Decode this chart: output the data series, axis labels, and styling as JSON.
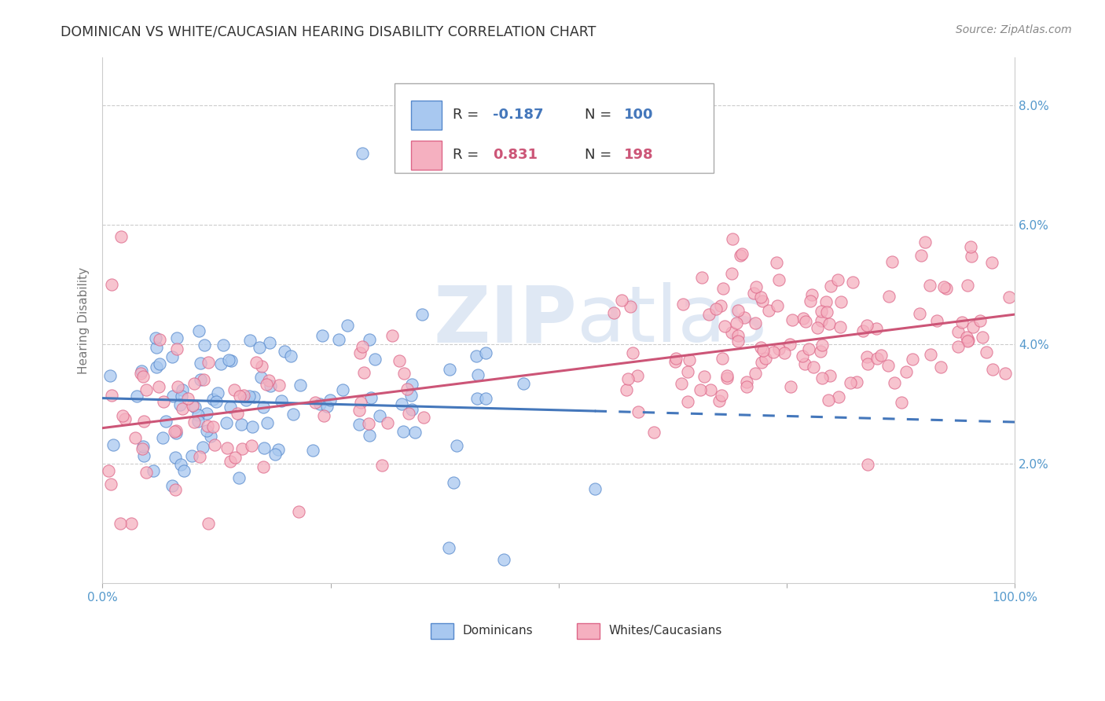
{
  "title": "DOMINICAN VS WHITE/CAUCASIAN HEARING DISABILITY CORRELATION CHART",
  "source": "Source: ZipAtlas.com",
  "ylabel": "Hearing Disability",
  "x_min": 0.0,
  "x_max": 1.0,
  "y_min": 0.0,
  "y_max": 0.088,
  "y_ticks": [
    0.02,
    0.04,
    0.06,
    0.08
  ],
  "y_tick_labels": [
    "2.0%",
    "4.0%",
    "6.0%",
    "8.0%"
  ],
  "x_ticks": [
    0.0,
    0.25,
    0.5,
    0.75,
    1.0
  ],
  "x_tick_labels": [
    "0.0%",
    "",
    "",
    "",
    "100.0%"
  ],
  "dominican_color": "#a8c8f0",
  "dominican_edge": "#5588cc",
  "caucasian_color": "#f5b0c0",
  "caucasian_edge": "#dd6688",
  "dominican_line_color": "#4477bb",
  "caucasian_line_color": "#cc5577",
  "dominican_R": -0.187,
  "dominican_N": 100,
  "caucasian_R": 0.831,
  "caucasian_N": 198,
  "watermark_zip": "ZIP",
  "watermark_atlas": "atlas",
  "legend_label_dominicans": "Dominicans",
  "legend_label_caucasians": "Whites/Caucasians",
  "background_color": "#ffffff",
  "grid_color": "#cccccc",
  "title_color": "#333333",
  "axis_label_color": "#777777",
  "tick_color": "#5599cc",
  "dom_line_intercept": 0.031,
  "dom_line_slope": -0.004,
  "cau_line_intercept": 0.026,
  "cau_line_slope": 0.019
}
